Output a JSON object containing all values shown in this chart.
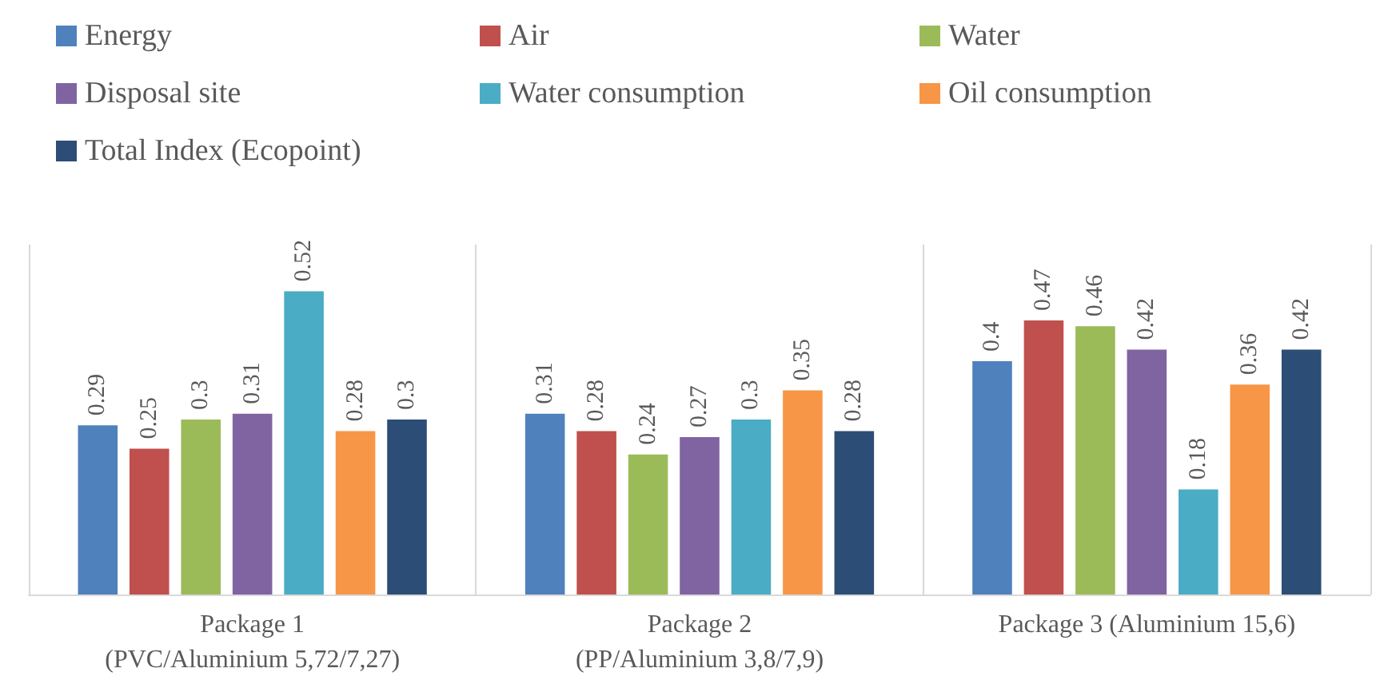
{
  "chart_data": {
    "type": "bar",
    "categories": [
      "Package 1\n(PVC/Aluminium 5,72/7,27)",
      "Package 2\n(PP/Aluminium 3,8/7,9)",
      "Package 3 (Aluminium 15,6)"
    ],
    "series": [
      {
        "name": "Energy",
        "color": "#4f81bd",
        "values": [
          0.29,
          0.31,
          0.4
        ]
      },
      {
        "name": "Air",
        "color": "#c0504d",
        "values": [
          0.25,
          0.28,
          0.47
        ]
      },
      {
        "name": "Water",
        "color": "#9bbb59",
        "values": [
          0.3,
          0.24,
          0.46
        ]
      },
      {
        "name": "Disposal site",
        "color": "#8064a2",
        "values": [
          0.31,
          0.27,
          0.42
        ]
      },
      {
        "name": "Water consumption",
        "color": "#4bacc6",
        "values": [
          0.52,
          0.3,
          0.18
        ]
      },
      {
        "name": "Oil consumption",
        "color": "#f79646",
        "values": [
          0.28,
          0.35,
          0.36
        ]
      },
      {
        "name": "Total Index (Ecopoint)",
        "color": "#2c4d75",
        "values": [
          0.3,
          0.28,
          0.42
        ]
      }
    ],
    "data_labels": true,
    "legend": "top"
  }
}
